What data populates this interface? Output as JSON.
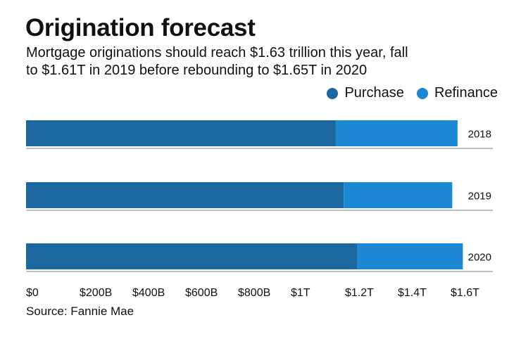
{
  "chart_data": {
    "type": "bar",
    "orientation": "horizontal",
    "stacked": true,
    "title": "Origination forecast",
    "subtitle": [
      "Mortgage originations should reach $1.63 trillion this year, fall",
      "to $1.61T in 2019 before rebounding to $1.65T in 2020"
    ],
    "categories": [
      "2018",
      "2019",
      "2020"
    ],
    "series": [
      {
        "name": "Purchase",
        "color": "#1b679f",
        "values": [
          1.17,
          1.2,
          1.25
        ]
      },
      {
        "name": "Refinance",
        "color": "#1c87d2",
        "values": [
          0.46,
          0.41,
          0.4
        ]
      }
    ],
    "xlim": [
      0,
      1.6
    ],
    "x_unit": "trillion USD",
    "x_ticks": [
      "$0",
      "$200B",
      "$400B",
      "$600B",
      "$800B",
      "$1T",
      "$1.2T",
      "$1.4T",
      "$1.6T"
    ],
    "legend_position": "top-right",
    "grid": false,
    "source": "Source: Fannie Mae"
  }
}
